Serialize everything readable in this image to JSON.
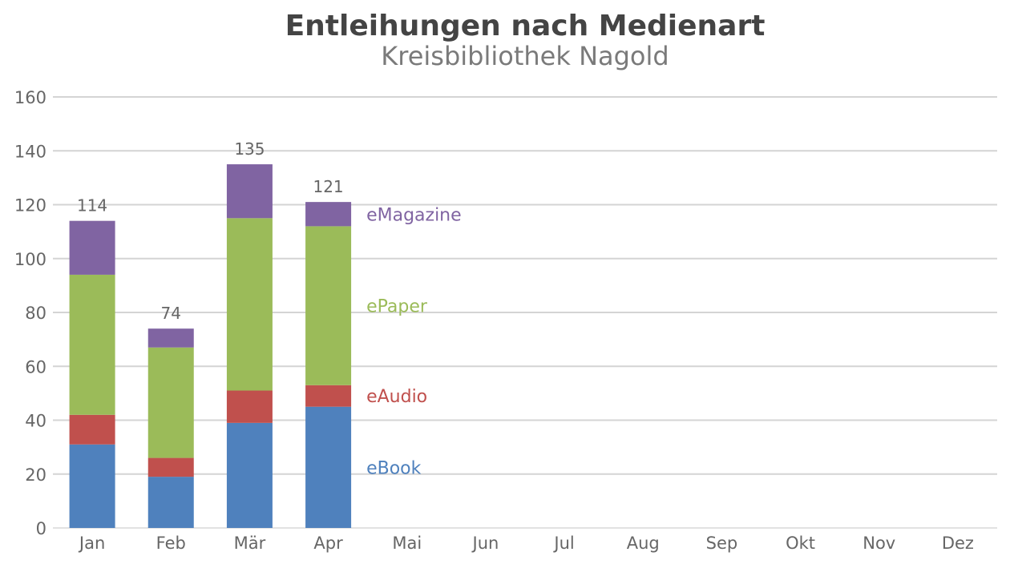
{
  "chart_data": {
    "type": "bar",
    "stacked": true,
    "title": "Entleihungen nach Medienart",
    "subtitle": "Kreisbibliothek Nagold",
    "xlabel": "",
    "ylabel": "",
    "ylim": [
      0,
      160
    ],
    "yticks": [
      0,
      20,
      40,
      60,
      80,
      100,
      120,
      140,
      160
    ],
    "grid": true,
    "legend": "inline-right-of-last-bar",
    "categories": [
      "Jan",
      "Feb",
      "Mär",
      "Apr",
      "Mai",
      "Jun",
      "Jul",
      "Aug",
      "Sep",
      "Okt",
      "Nov",
      "Dez"
    ],
    "series": [
      {
        "name": "eBook",
        "color": "#4f81bd",
        "values": [
          31,
          19,
          39,
          45,
          null,
          null,
          null,
          null,
          null,
          null,
          null,
          null
        ]
      },
      {
        "name": "eAudio",
        "color": "#c0504d",
        "values": [
          11,
          7,
          12,
          8,
          null,
          null,
          null,
          null,
          null,
          null,
          null,
          null
        ]
      },
      {
        "name": "ePaper",
        "color": "#9bbb59",
        "values": [
          52,
          41,
          64,
          59,
          null,
          null,
          null,
          null,
          null,
          null,
          null,
          null
        ]
      },
      {
        "name": "eMagazine",
        "color": "#8064a2",
        "values": [
          20,
          7,
          20,
          9,
          null,
          null,
          null,
          null,
          null,
          null,
          null,
          null
        ]
      }
    ],
    "totals": [
      114,
      74,
      135,
      121,
      null,
      null,
      null,
      null,
      null,
      null,
      null,
      null
    ]
  }
}
